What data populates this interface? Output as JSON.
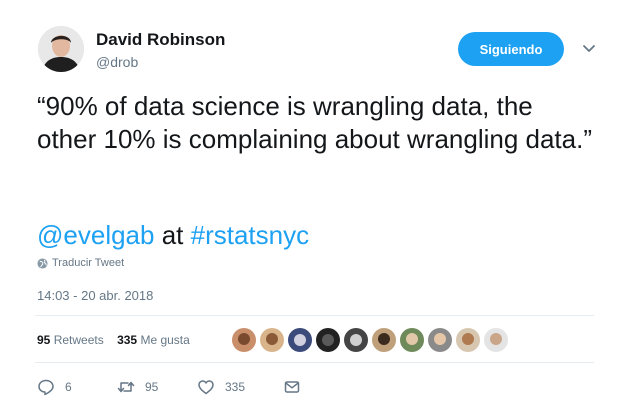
{
  "author": {
    "name": "David Robinson",
    "handle": "@drob"
  },
  "follow_button_label": "Siguiendo",
  "tweet": {
    "text": "“90% of data science is wrangling data, the other 10% is complaining about wrangling data.”",
    "mention": "@evelgab",
    "connector": " at ",
    "hashtag": "#rstatsnyc"
  },
  "translate_label": "Traducir Tweet",
  "timestamp": "14:03 - 20 abr. 2018",
  "stats": {
    "retweets_count": "95",
    "retweets_label": "Retweets",
    "likes_count": "335",
    "likes_label": "Me gusta"
  },
  "actions": {
    "replies": "6",
    "retweets": "95",
    "likes": "335"
  },
  "colors": {
    "accent": "#1da1f2",
    "secondary_text": "#657786",
    "divider": "#e6ecf0"
  },
  "icons": [
    "chevron-down-icon",
    "globe-icon",
    "reply-icon",
    "retweet-icon",
    "heart-icon",
    "envelope-icon"
  ]
}
